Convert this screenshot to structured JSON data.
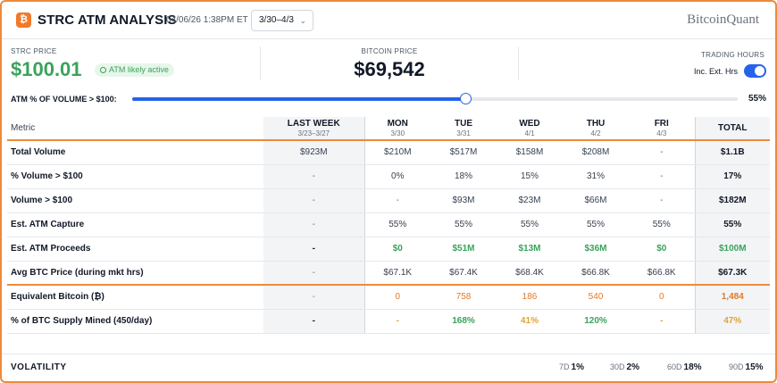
{
  "header": {
    "logo_glyph": "₿",
    "title": "STRC ATM ANALYSIS",
    "timestamp": "04/06/26 1:38PM ET",
    "date_range": "3/30–4/3",
    "brand": "BitcoinQuant"
  },
  "metrics": {
    "strc_label": "STRC PRICE",
    "strc_price": "$100.01",
    "atm_badge": "ATM likely active",
    "btc_label": "BITCOIN PRICE",
    "btc_price": "$69,542",
    "trading_hours_label": "TRADING HOURS",
    "ext_hours_label": "Inc. Ext. Hrs",
    "ext_hours_on": true
  },
  "slider": {
    "label": "ATM % OF VOLUME > $100:",
    "value_text": "55%",
    "value": 0.55
  },
  "table": {
    "metric_header": "Metric",
    "columns": [
      {
        "label": "LAST WEEK",
        "sub": "3/23–3/27"
      },
      {
        "label": "MON",
        "sub": "3/30"
      },
      {
        "label": "TUE",
        "sub": "3/31"
      },
      {
        "label": "WED",
        "sub": "4/1"
      },
      {
        "label": "THU",
        "sub": "4/2"
      },
      {
        "label": "FRI",
        "sub": "4/3"
      },
      {
        "label": "TOTAL",
        "sub": ""
      }
    ],
    "rows": [
      {
        "metric": "Total Volume",
        "cells": [
          "$923M",
          "$210M",
          "$517M",
          "$158M",
          "$208M",
          "-",
          "$1.1B"
        ],
        "styles": [
          "default",
          "default",
          "default",
          "default",
          "default",
          "dash",
          "bold"
        ]
      },
      {
        "metric": "% Volume > $100",
        "cells": [
          "-",
          "0%",
          "18%",
          "15%",
          "31%",
          "-",
          "17%"
        ],
        "styles": [
          "dash",
          "default",
          "default",
          "default",
          "default",
          "dash",
          "bold"
        ]
      },
      {
        "metric": "Volume > $100",
        "cells": [
          "-",
          "-",
          "$93M",
          "$23M",
          "$66M",
          "-",
          "$182M"
        ],
        "styles": [
          "dash",
          "dash",
          "default",
          "default",
          "default",
          "dash",
          "bold"
        ]
      },
      {
        "metric": "Est. ATM Capture",
        "cells": [
          "-",
          "55%",
          "55%",
          "55%",
          "55%",
          "55%",
          "55%"
        ],
        "styles": [
          "dash",
          "default",
          "default",
          "default",
          "default",
          "default",
          "bold"
        ]
      },
      {
        "metric": "Est. ATM Proceeds",
        "cells": [
          "-",
          "$0",
          "$51M",
          "$13M",
          "$36M",
          "$0",
          "$100M"
        ],
        "styles": [
          "bold",
          "green",
          "green",
          "green",
          "green",
          "green",
          "green"
        ]
      },
      {
        "metric": "Avg BTC Price (during mkt hrs)",
        "cells": [
          "-",
          "$67.1K",
          "$67.4K",
          "$68.4K",
          "$66.8K",
          "$66.8K",
          "$67.3K"
        ],
        "styles": [
          "dash",
          "default",
          "default",
          "default",
          "default",
          "default",
          "bold"
        ],
        "split": true
      },
      {
        "metric": "Equivalent Bitcoin (₿)",
        "cells": [
          "-",
          "0",
          "758",
          "186",
          "540",
          "0",
          "1,484"
        ],
        "styles": [
          "orange",
          "orange",
          "orange",
          "orange",
          "orange",
          "orange",
          "orange-b"
        ]
      },
      {
        "metric": "% of BTC Supply Mined (450/day)",
        "cells": [
          "-",
          "-",
          "168%",
          "41%",
          "120%",
          "-",
          "47%"
        ],
        "styles": [
          "bold",
          "gold",
          "green",
          "gold",
          "green",
          "gold",
          "gold"
        ]
      }
    ]
  },
  "volatility": {
    "label": "VOLATILITY",
    "items": [
      {
        "period": "7D",
        "value": "1%"
      },
      {
        "period": "30D",
        "value": "2%"
      },
      {
        "period": "60D",
        "value": "18%"
      },
      {
        "period": "90D",
        "value": "15%"
      }
    ]
  },
  "colors": {
    "accent_orange": "#ec8a3c",
    "positive_green": "#3aa35a",
    "slider_blue": "#2563eb"
  }
}
